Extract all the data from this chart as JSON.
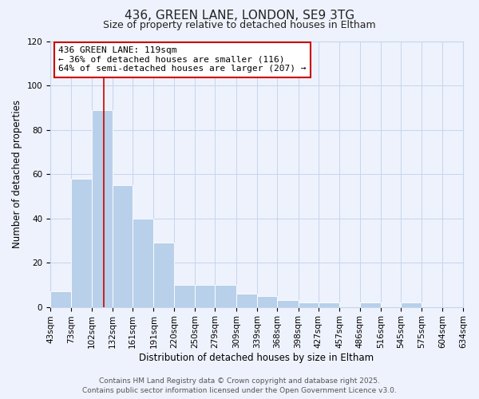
{
  "title": "436, GREEN LANE, LONDON, SE9 3TG",
  "subtitle": "Size of property relative to detached houses in Eltham",
  "bar_values": [
    7,
    58,
    89,
    55,
    40,
    29,
    10,
    10,
    10,
    6,
    5,
    3,
    2,
    2,
    0,
    2,
    0,
    2,
    0,
    0
  ],
  "bin_edges": [
    43,
    73,
    102,
    132,
    161,
    191,
    220,
    250,
    279,
    309,
    339,
    368,
    398,
    427,
    457,
    486,
    516,
    545,
    575,
    604,
    634
  ],
  "bin_labels": [
    "43sqm",
    "73sqm",
    "102sqm",
    "132sqm",
    "161sqm",
    "191sqm",
    "220sqm",
    "250sqm",
    "279sqm",
    "309sqm",
    "339sqm",
    "368sqm",
    "398sqm",
    "427sqm",
    "457sqm",
    "486sqm",
    "516sqm",
    "545sqm",
    "575sqm",
    "604sqm",
    "634sqm"
  ],
  "bar_color": "#b8d0ea",
  "vline_x": 119,
  "vline_color": "#cc0000",
  "xlabel": "Distribution of detached houses by size in Eltham",
  "ylabel": "Number of detached properties",
  "ylim": [
    0,
    120
  ],
  "yticks": [
    0,
    20,
    40,
    60,
    80,
    100,
    120
  ],
  "annotation_title": "436 GREEN LANE: 119sqm",
  "annotation_line1": "← 36% of detached houses are smaller (116)",
  "annotation_line2": "64% of semi-detached houses are larger (207) →",
  "annotation_box_color": "#cc0000",
  "footer_line1": "Contains HM Land Registry data © Crown copyright and database right 2025.",
  "footer_line2": "Contains public sector information licensed under the Open Government Licence v3.0.",
  "background_color": "#eef2fc",
  "grid_color": "#c5d5ee",
  "title_fontsize": 11,
  "subtitle_fontsize": 9,
  "axis_label_fontsize": 8.5,
  "tick_fontsize": 7.5,
  "annotation_fontsize": 8,
  "footer_fontsize": 6.5
}
